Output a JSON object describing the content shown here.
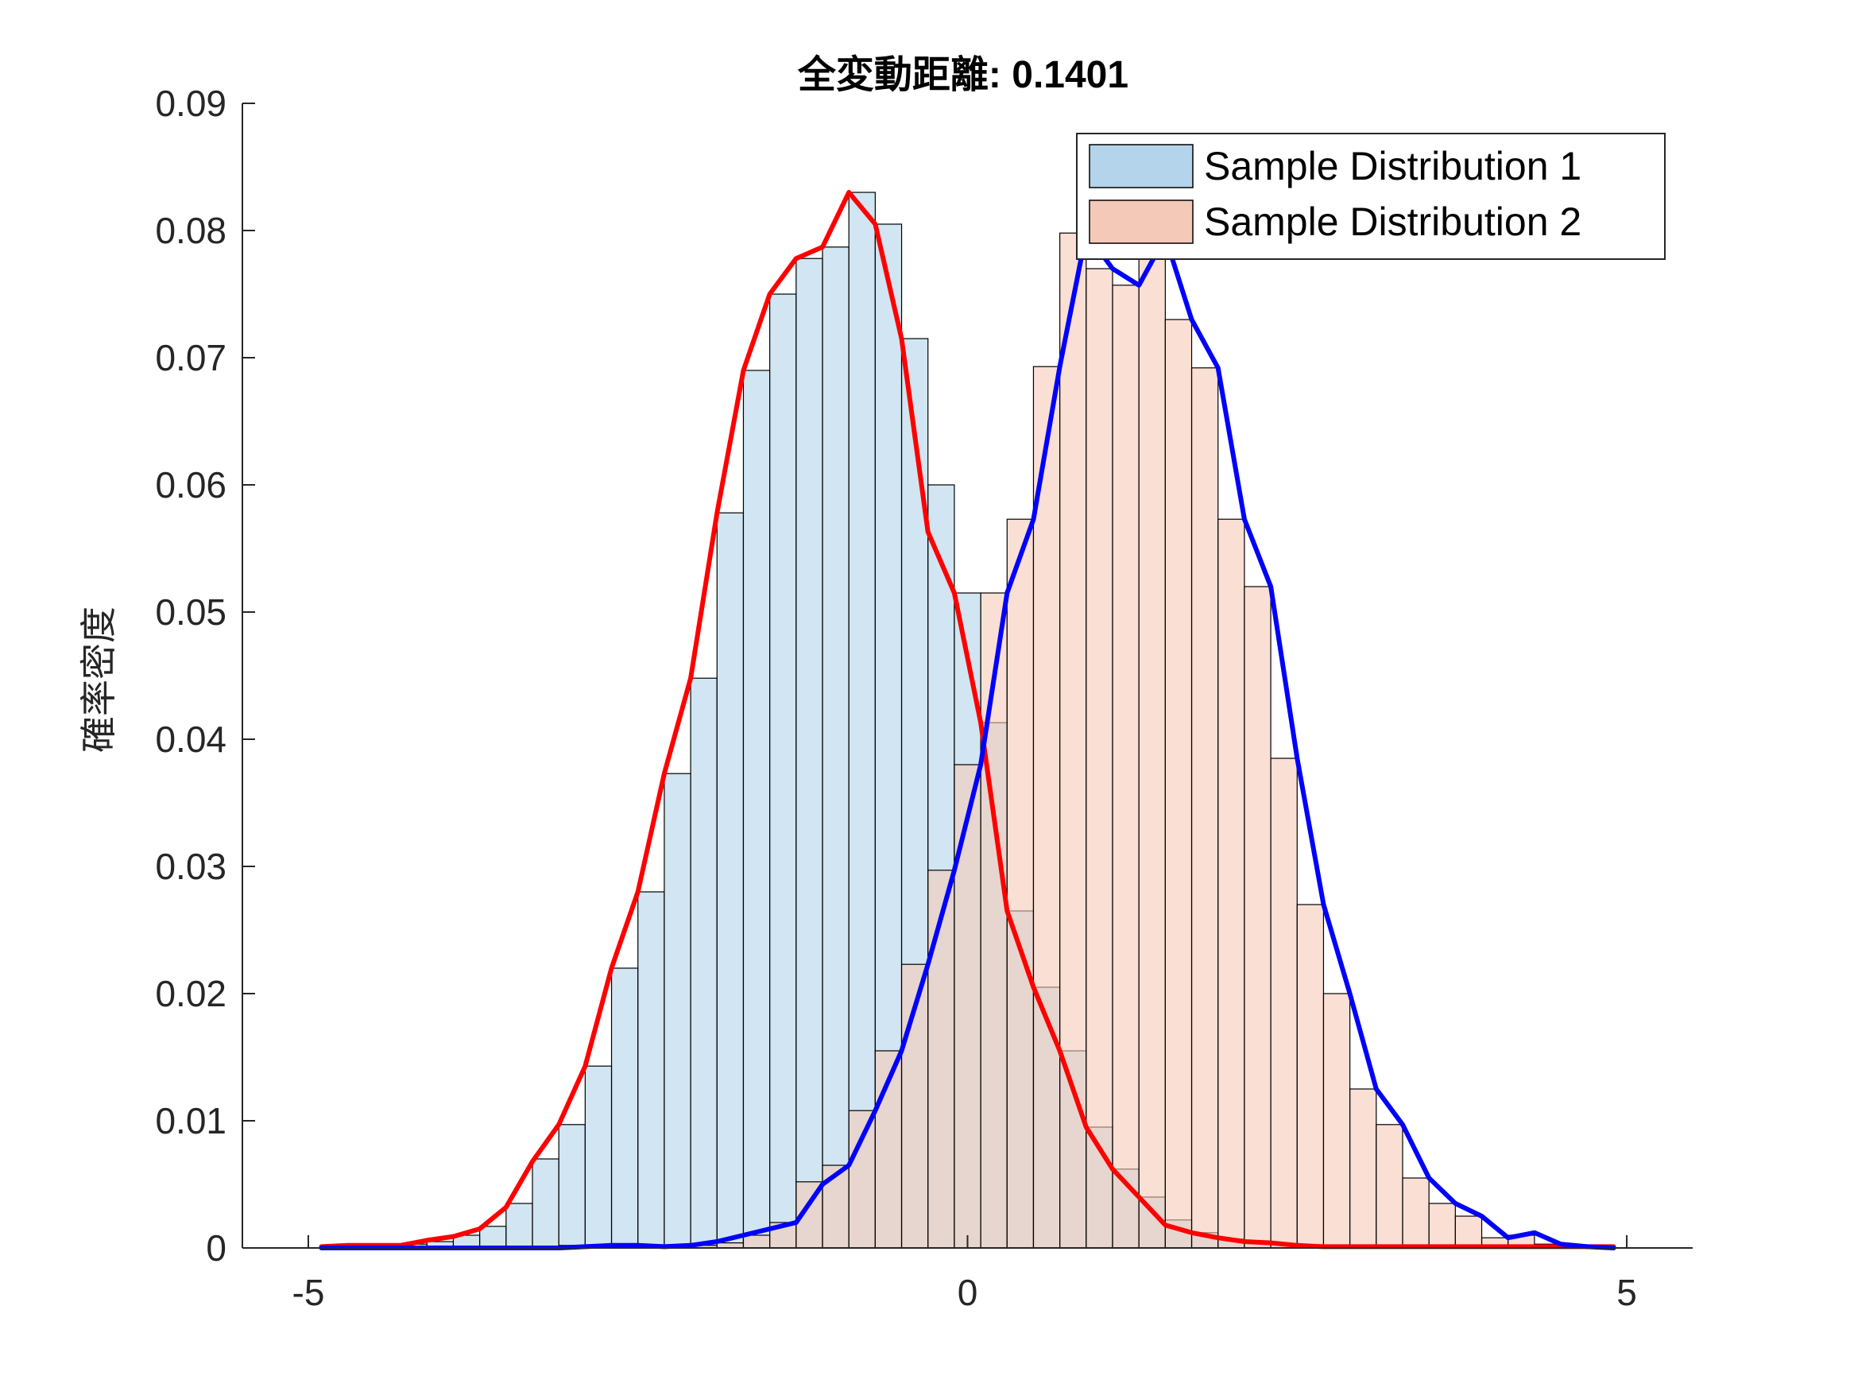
{
  "chart_data": {
    "type": "bar",
    "title": "全変動距離: 0.1401",
    "xlabel": "",
    "ylabel": "確率密度",
    "xlim": [
      -5.5,
      5.5
    ],
    "ylim": [
      0,
      0.09
    ],
    "xticks": [
      -5,
      0,
      5
    ],
    "xtick_labels": [
      "-5",
      "0",
      "5"
    ],
    "yticks": [
      0,
      0.01,
      0.02,
      0.03,
      0.04,
      0.05,
      0.06,
      0.07,
      0.08,
      0.09
    ],
    "ytick_labels": [
      "0",
      "0.01",
      "0.02",
      "0.03",
      "0.04",
      "0.05",
      "0.06",
      "0.07",
      "0.08",
      "0.09"
    ],
    "grid": false,
    "legend_position": "top-right",
    "bin_edges": [
      -4.9,
      -4.7,
      -4.5,
      -4.3,
      -4.1,
      -3.9,
      -3.7,
      -3.5,
      -3.3,
      -3.1,
      -2.9,
      -2.7,
      -2.5,
      -2.3,
      -2.1,
      -1.9,
      -1.7,
      -1.5,
      -1.3,
      -1.1,
      -0.9,
      -0.7,
      -0.5,
      -0.3,
      -0.1,
      0.1,
      0.3,
      0.5,
      0.7,
      0.9,
      1.1,
      1.3,
      1.5,
      1.7,
      1.9,
      2.1,
      2.3,
      2.5,
      2.7,
      2.9,
      3.1,
      3.3,
      3.5,
      3.7,
      3.9,
      4.1,
      4.3,
      4.5,
      4.7,
      4.9
    ],
    "series": [
      {
        "name": "Sample Distribution 1",
        "kind": "histogram",
        "face_color": "#b3d4ea",
        "values": [
          0.0002,
          0.0002,
          0.0002,
          0.0003,
          0.0005,
          0.001,
          0.0017,
          0.0035,
          0.007,
          0.0097,
          0.0143,
          0.022,
          0.028,
          0.0373,
          0.0448,
          0.0578,
          0.069,
          0.075,
          0.0778,
          0.0787,
          0.083,
          0.0805,
          0.0715,
          0.06,
          0.0515,
          0.0413,
          0.0265,
          0.0205,
          0.0155,
          0.0095,
          0.0062,
          0.004,
          0.0022,
          0.0012,
          0.0007,
          0.0005,
          0.0003,
          0.0002,
          0.0001,
          0.0001,
          0.0001,
          0.0001,
          0.0001,
          0.0001,
          0.0001,
          0.0001,
          0.0001,
          0.0001,
          0.0001
        ]
      },
      {
        "name": "Sample Distribution 2",
        "kind": "histogram",
        "face_color": "#f5c9b8",
        "values": [
          0.0001,
          0.0001,
          0.0001,
          0.0001,
          0.0001,
          0.0001,
          0.0001,
          0.0001,
          0.0001,
          0.0002,
          0.0002,
          0.0002,
          0.0002,
          0.0002,
          0.0002,
          0.0004,
          0.001,
          0.002,
          0.0052,
          0.0065,
          0.0108,
          0.0155,
          0.0223,
          0.0297,
          0.038,
          0.0515,
          0.0573,
          0.0693,
          0.0798,
          0.077,
          0.0757,
          0.0795,
          0.073,
          0.0692,
          0.0573,
          0.052,
          0.0385,
          0.027,
          0.02,
          0.0125,
          0.0097,
          0.0055,
          0.0035,
          0.0025,
          0.0008,
          0.001,
          0.0003,
          0.0002,
          0.0001
        ]
      },
      {
        "name": "",
        "kind": "line",
        "color": "#ff0000",
        "x": [
          -4.9,
          -4.7,
          -4.5,
          -4.3,
          -4.1,
          -3.9,
          -3.7,
          -3.5,
          -3.3,
          -3.1,
          -2.9,
          -2.7,
          -2.5,
          -2.3,
          -2.1,
          -1.9,
          -1.7,
          -1.5,
          -1.3,
          -1.1,
          -0.9,
          -0.7,
          -0.5,
          -0.3,
          -0.1,
          0.1,
          0.3,
          0.5,
          0.7,
          0.9,
          1.1,
          1.3,
          1.5,
          1.7,
          1.9,
          2.1,
          2.3,
          2.5,
          2.7,
          2.9,
          3.1,
          3.3,
          3.5,
          3.7,
          3.9,
          4.1,
          4.3,
          4.5,
          4.7,
          4.9
        ],
        "y": [
          0.0001,
          0.0002,
          0.0002,
          0.0002,
          0.0006,
          0.0009,
          0.0015,
          0.0032,
          0.0068,
          0.0097,
          0.0143,
          0.022,
          0.028,
          0.0373,
          0.0448,
          0.0578,
          0.069,
          0.075,
          0.0778,
          0.0787,
          0.083,
          0.0805,
          0.0715,
          0.0563,
          0.0515,
          0.0413,
          0.0265,
          0.0205,
          0.0155,
          0.0095,
          0.0062,
          0.004,
          0.0018,
          0.0012,
          0.0008,
          0.0005,
          0.0004,
          0.0002,
          0.0001,
          0.0001,
          0.0001,
          0.0001,
          0.0001,
          0.0001,
          0.0001,
          0.0001,
          0.0001,
          0.0001,
          0.0001,
          0.0001
        ]
      },
      {
        "name": "",
        "kind": "line",
        "color": "#0000ff",
        "x": [
          -4.9,
          -4.7,
          -4.5,
          -4.3,
          -4.1,
          -3.9,
          -3.7,
          -3.5,
          -3.3,
          -3.1,
          -2.9,
          -2.7,
          -2.5,
          -2.3,
          -2.1,
          -1.9,
          -1.7,
          -1.5,
          -1.3,
          -1.1,
          -0.9,
          -0.7,
          -0.5,
          -0.3,
          -0.1,
          0.1,
          0.3,
          0.5,
          0.7,
          0.9,
          1.1,
          1.3,
          1.5,
          1.7,
          1.9,
          2.1,
          2.3,
          2.5,
          2.7,
          2.9,
          3.1,
          3.3,
          3.5,
          3.7,
          3.9,
          4.1,
          4.3,
          4.5,
          4.7,
          4.9
        ],
        "y": [
          0.0,
          0.0,
          0.0,
          0.0,
          0.0,
          0.0,
          0.0,
          0.0,
          0.0,
          0.0,
          0.0001,
          0.0002,
          0.0002,
          0.0001,
          0.0002,
          0.0005,
          0.001,
          0.0015,
          0.002,
          0.005,
          0.0065,
          0.0108,
          0.0155,
          0.0223,
          0.0297,
          0.038,
          0.0515,
          0.0573,
          0.0693,
          0.0798,
          0.077,
          0.0757,
          0.0795,
          0.073,
          0.0692,
          0.0573,
          0.052,
          0.0385,
          0.027,
          0.02,
          0.0125,
          0.0097,
          0.0055,
          0.0035,
          0.0025,
          0.0008,
          0.0012,
          0.0003,
          0.0001,
          0.0
        ]
      }
    ]
  }
}
